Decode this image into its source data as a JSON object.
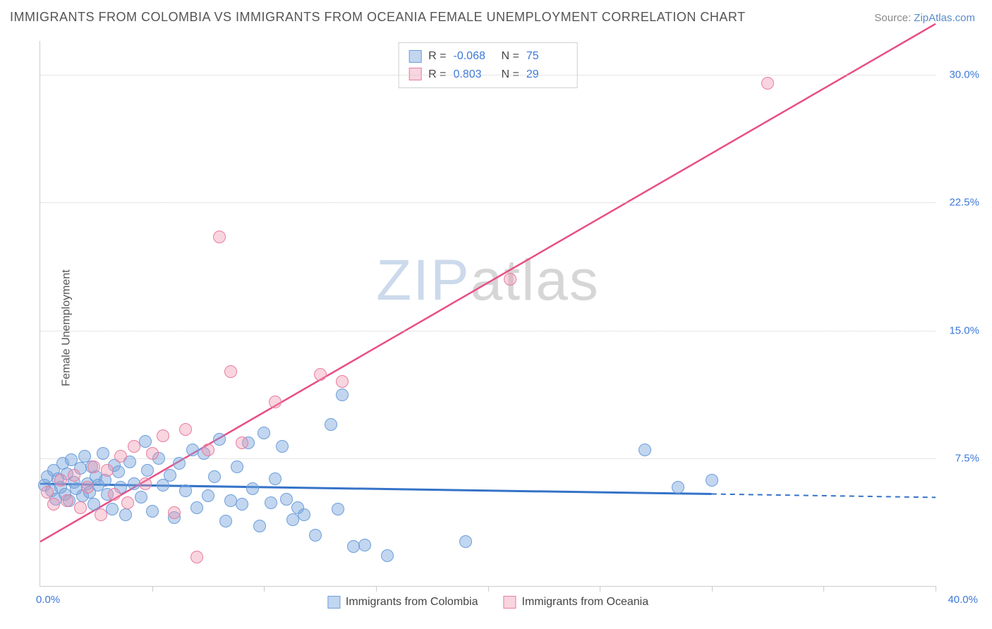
{
  "header": {
    "title": "IMMIGRANTS FROM COLOMBIA VS IMMIGRANTS FROM OCEANIA FEMALE UNEMPLOYMENT CORRELATION CHART",
    "source_prefix": "Source: ",
    "source_link": "ZipAtlas.com"
  },
  "chart": {
    "type": "scatter",
    "ylabel": "Female Unemployment",
    "xlim": [
      0,
      40
    ],
    "ylim": [
      0,
      32
    ],
    "ytick_values": [
      7.5,
      15.0,
      22.5,
      30.0
    ],
    "ytick_labels": [
      "7.5%",
      "15.0%",
      "22.5%",
      "30.0%"
    ],
    "xtick_values": [
      0,
      5,
      10,
      15,
      20,
      25,
      30,
      35,
      40
    ],
    "x_origin_label": "0.0%",
    "x_max_label": "40.0%",
    "grid_color": "#cccccc",
    "axis_color": "#cccccc",
    "background_color": "#ffffff",
    "marker_radius": 9,
    "marker_border_width": 1.5,
    "series": [
      {
        "name": "Immigrants from Colombia",
        "fill": "rgba(120,165,220,0.45)",
        "stroke": "#6d9edb",
        "line_color": "#3573c8",
        "line_width": 3,
        "R_label": "R =",
        "R_value": "-0.068",
        "N_label": "N =",
        "N_value": "75",
        "regression": {
          "x1_pct": 0,
          "y1_pct": 6.0,
          "x2_pct": 30,
          "y2_pct": 5.4,
          "dash_after_x": 30,
          "x3_pct": 40,
          "y3_pct": 5.2
        },
        "points": [
          [
            0.2,
            5.9
          ],
          [
            0.3,
            6.4
          ],
          [
            0.5,
            5.6
          ],
          [
            0.6,
            6.8
          ],
          [
            0.7,
            5.1
          ],
          [
            0.8,
            6.3
          ],
          [
            0.9,
            5.8
          ],
          [
            1.0,
            7.2
          ],
          [
            1.1,
            5.4
          ],
          [
            1.2,
            6.6
          ],
          [
            1.3,
            5.0
          ],
          [
            1.4,
            7.4
          ],
          [
            1.5,
            6.1
          ],
          [
            1.6,
            5.7
          ],
          [
            1.8,
            6.9
          ],
          [
            1.9,
            5.3
          ],
          [
            2.0,
            7.6
          ],
          [
            2.1,
            6.0
          ],
          [
            2.2,
            5.5
          ],
          [
            2.3,
            7.0
          ],
          [
            2.4,
            4.8
          ],
          [
            2.5,
            6.4
          ],
          [
            2.6,
            5.9
          ],
          [
            2.8,
            7.8
          ],
          [
            2.9,
            6.2
          ],
          [
            3.0,
            5.4
          ],
          [
            3.2,
            4.5
          ],
          [
            3.3,
            7.1
          ],
          [
            3.5,
            6.7
          ],
          [
            3.6,
            5.8
          ],
          [
            3.8,
            4.2
          ],
          [
            4.0,
            7.3
          ],
          [
            4.2,
            6.0
          ],
          [
            4.5,
            5.2
          ],
          [
            4.7,
            8.5
          ],
          [
            4.8,
            6.8
          ],
          [
            5.0,
            4.4
          ],
          [
            5.3,
            7.5
          ],
          [
            5.5,
            5.9
          ],
          [
            5.8,
            6.5
          ],
          [
            6.0,
            4.0
          ],
          [
            6.2,
            7.2
          ],
          [
            6.5,
            5.6
          ],
          [
            6.8,
            8.0
          ],
          [
            7.0,
            4.6
          ],
          [
            7.3,
            7.8
          ],
          [
            7.5,
            5.3
          ],
          [
            7.8,
            6.4
          ],
          [
            8.0,
            8.6
          ],
          [
            8.3,
            3.8
          ],
          [
            8.5,
            5.0
          ],
          [
            8.8,
            7.0
          ],
          [
            9.0,
            4.8
          ],
          [
            9.3,
            8.4
          ],
          [
            9.5,
            5.7
          ],
          [
            9.8,
            3.5
          ],
          [
            10.0,
            9.0
          ],
          [
            10.3,
            4.9
          ],
          [
            10.5,
            6.3
          ],
          [
            10.8,
            8.2
          ],
          [
            11.0,
            5.1
          ],
          [
            11.3,
            3.9
          ],
          [
            11.5,
            4.6
          ],
          [
            11.8,
            4.2
          ],
          [
            12.3,
            3.0
          ],
          [
            13.0,
            9.5
          ],
          [
            13.3,
            4.5
          ],
          [
            13.5,
            11.2
          ],
          [
            14.0,
            2.3
          ],
          [
            14.5,
            2.4
          ],
          [
            15.5,
            1.8
          ],
          [
            19.0,
            2.6
          ],
          [
            27.0,
            8.0
          ],
          [
            30.0,
            6.2
          ],
          [
            28.5,
            5.8
          ]
        ]
      },
      {
        "name": "Immigrants from Oceania",
        "fill": "rgba(240,150,175,0.40)",
        "stroke": "#e87ca0",
        "line_color": "#e94e86",
        "line_width": 2.5,
        "R_label": "R =",
        "R_value": "0.803",
        "N_label": "N =",
        "N_value": "29",
        "regression": {
          "x1_pct": 0,
          "y1_pct": 2.6,
          "x2_pct": 40,
          "y2_pct": 33.0
        },
        "points": [
          [
            0.3,
            5.5
          ],
          [
            0.6,
            4.8
          ],
          [
            0.9,
            6.2
          ],
          [
            1.2,
            5.0
          ],
          [
            1.5,
            6.5
          ],
          [
            1.8,
            4.6
          ],
          [
            2.1,
            5.8
          ],
          [
            2.4,
            7.0
          ],
          [
            2.7,
            4.2
          ],
          [
            3.0,
            6.8
          ],
          [
            3.3,
            5.4
          ],
          [
            3.6,
            7.6
          ],
          [
            3.9,
            4.9
          ],
          [
            4.2,
            8.2
          ],
          [
            4.7,
            6.0
          ],
          [
            5.0,
            7.8
          ],
          [
            5.5,
            8.8
          ],
          [
            6.0,
            4.3
          ],
          [
            6.5,
            9.2
          ],
          [
            7.0,
            1.7
          ],
          [
            7.5,
            8.0
          ],
          [
            8.0,
            20.5
          ],
          [
            8.5,
            12.6
          ],
          [
            9.0,
            8.4
          ],
          [
            10.5,
            10.8
          ],
          [
            12.5,
            12.4
          ],
          [
            13.5,
            12.0
          ],
          [
            21.0,
            18.0
          ],
          [
            32.5,
            29.5
          ]
        ]
      }
    ],
    "watermark": {
      "part1": "ZIP",
      "part2": "atlas"
    }
  }
}
